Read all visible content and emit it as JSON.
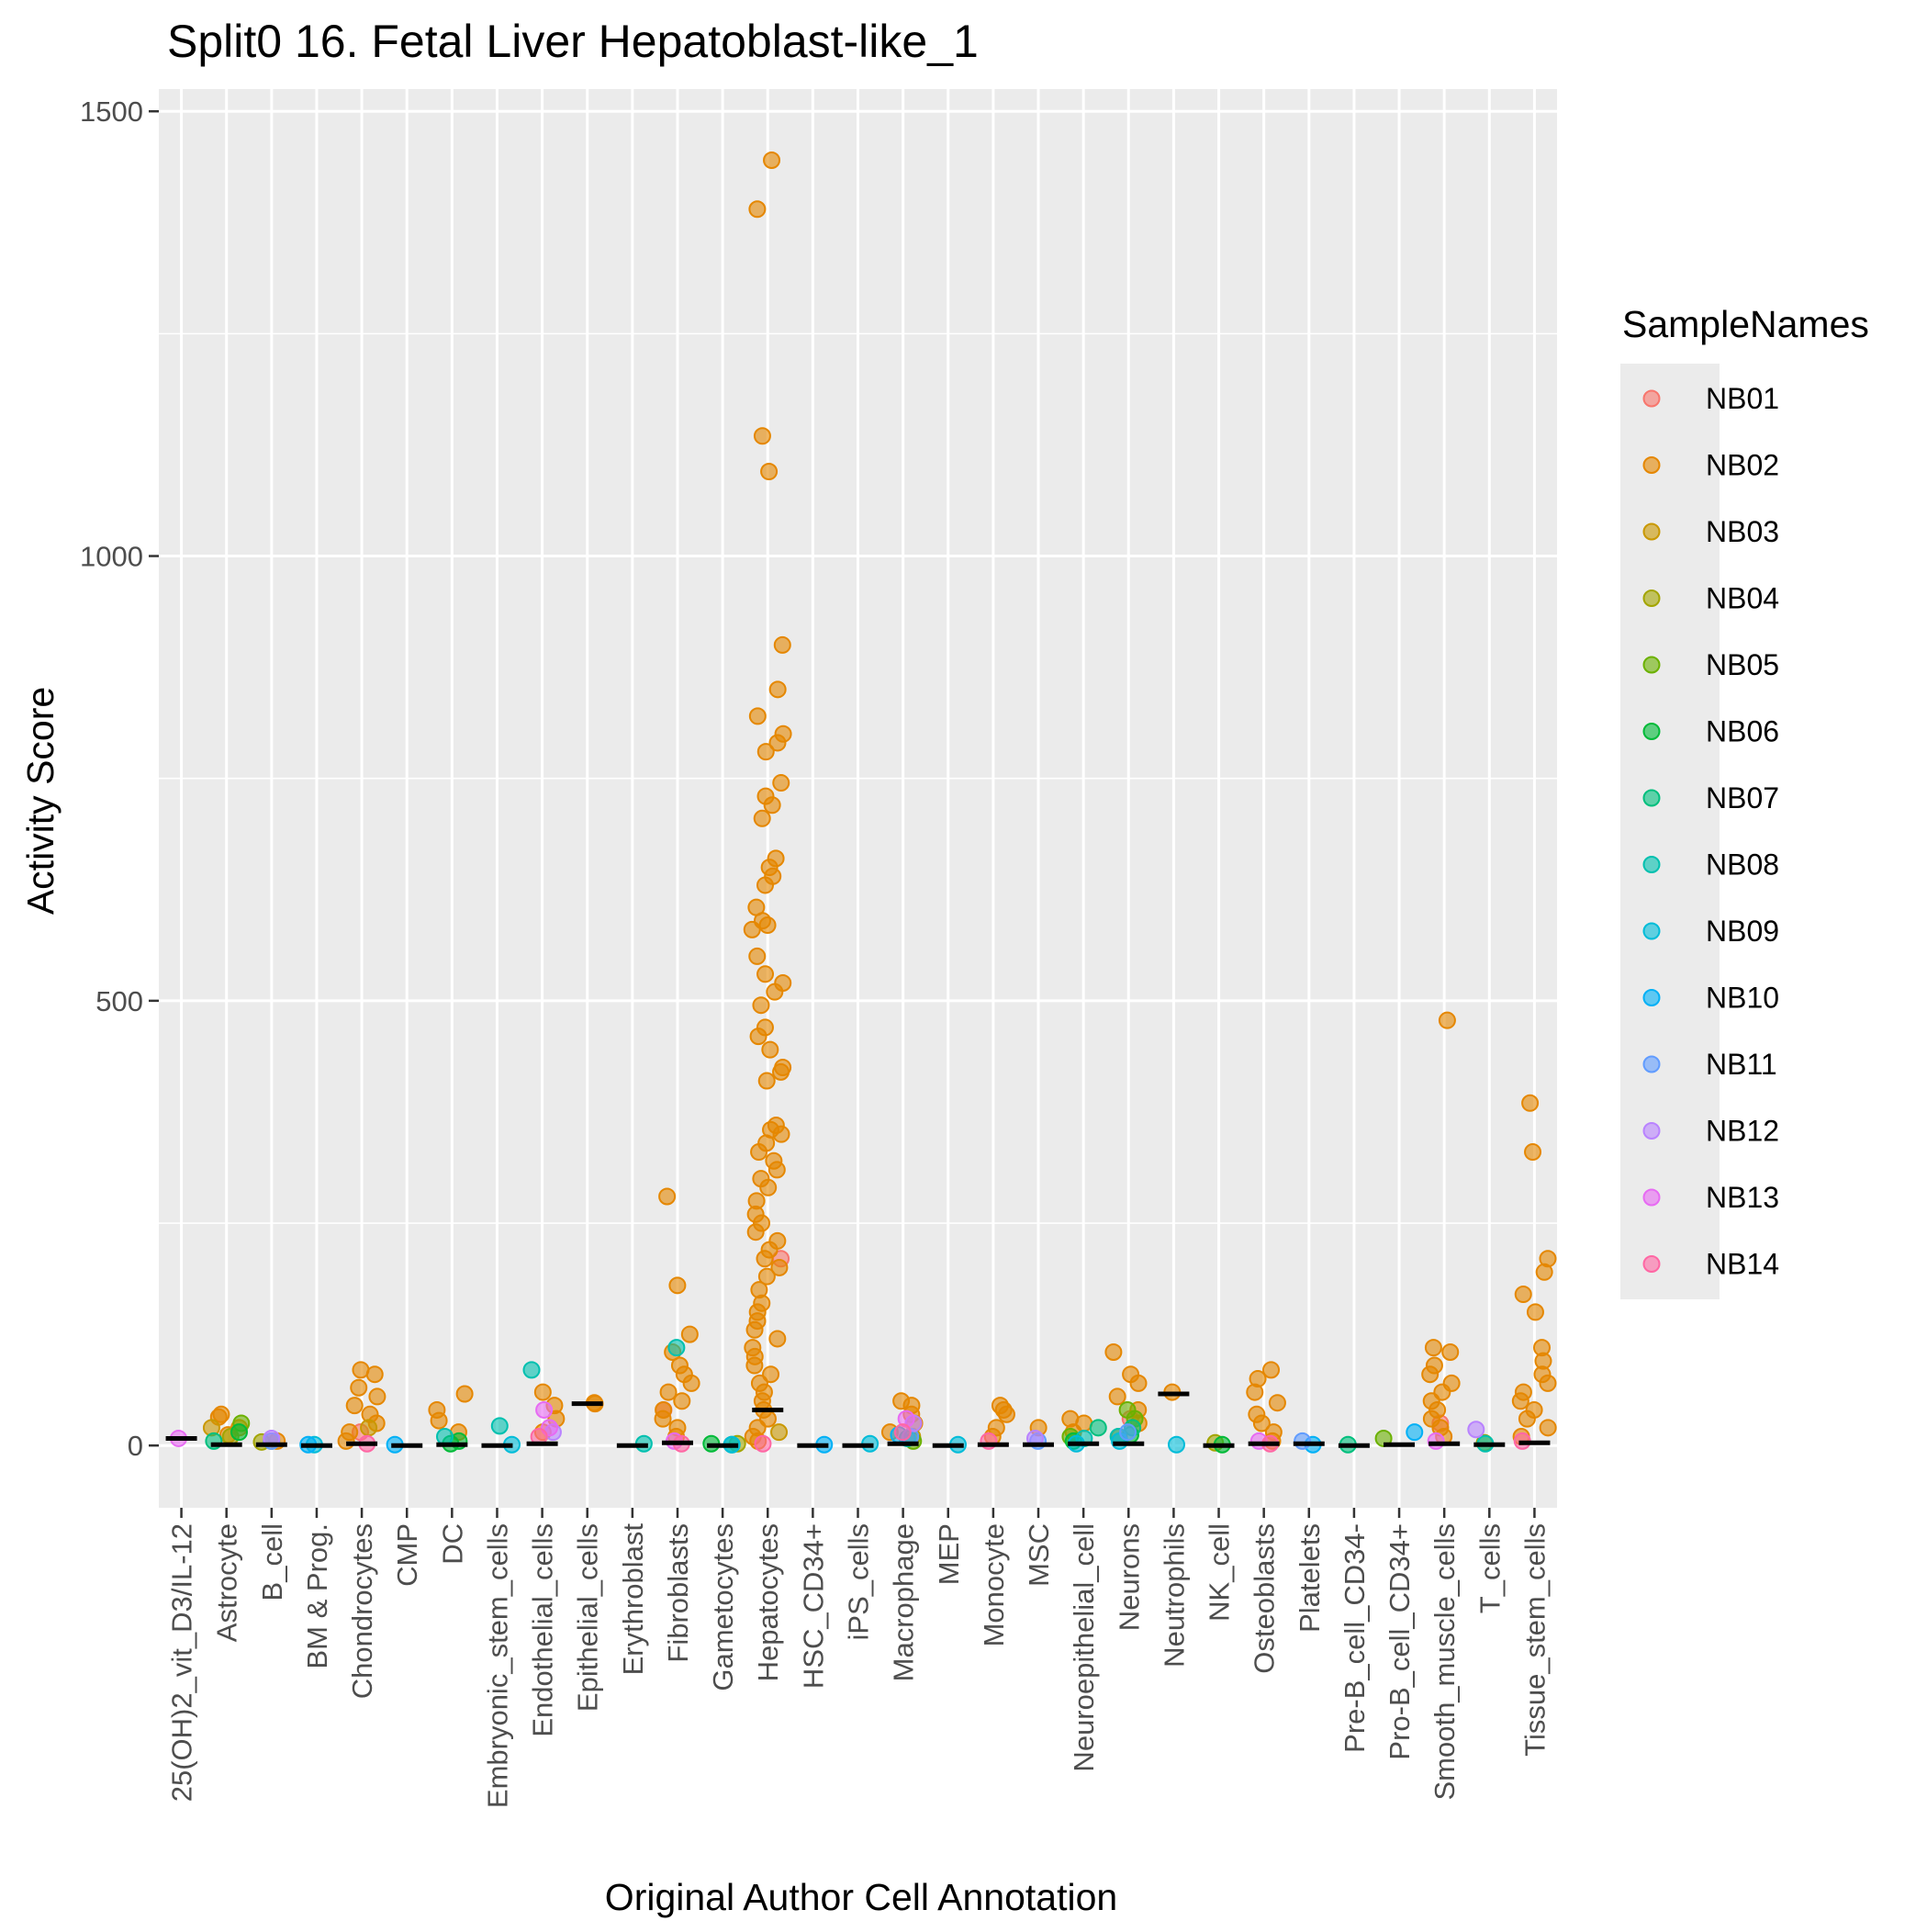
{
  "chart_data": {
    "type": "scatter",
    "title": "Split0 16. Fetal Liver Hepatoblast-like_1",
    "xlabel": "Original Author Cell Annotation",
    "ylabel": "Activity Score",
    "ylim": [
      -70,
      1525
    ],
    "y_ticks": [
      0,
      500,
      1000,
      1500
    ],
    "grid": true,
    "legend": {
      "title": "SampleNames",
      "position": "right",
      "entries": [
        "NB01",
        "NB02",
        "NB03",
        "NB04",
        "NB05",
        "NB06",
        "NB07",
        "NB08",
        "NB09",
        "NB10",
        "NB11",
        "NB12",
        "NB13",
        "NB14"
      ]
    },
    "colors": {
      "NB01": "#F8766D",
      "NB02": "#E58700",
      "NB03": "#C99800",
      "NB04": "#A3A500",
      "NB05": "#6BB100",
      "NB06": "#00BA38",
      "NB07": "#00BF7D",
      "NB08": "#00C0AF",
      "NB09": "#00BCD8",
      "NB10": "#00B0F6",
      "NB11": "#619CFF",
      "NB12": "#B983FF",
      "NB13": "#E76BF3",
      "NB14": "#FF67A4",
      "panel": "#EBEBEB",
      "grid": "#FFFFFF",
      "median": "#000000"
    },
    "categories": [
      "25(OH)2_vit_D3/IL-12",
      "Astrocyte",
      "B_cell",
      "BM & Prog.",
      "Chondrocytes",
      "CMP",
      "DC",
      "Embryonic_stem_cells",
      "Endothelial_cells",
      "Epithelial_cells",
      "Erythroblast",
      "Fibroblasts",
      "Gametocytes",
      "Hepatocytes",
      "HSC_CD34+",
      "iPS_cells",
      "Macrophage",
      "MEP",
      "Monocyte",
      "MSC",
      "Neuroepithelial_cell",
      "Neurons",
      "Neutrophils",
      "NK_cell",
      "Osteoblasts",
      "Platelets",
      "Pre-B_cell_CD34-",
      "Pro-B_cell_CD34+",
      "Smooth_muscle_cells",
      "T_cells",
      "Tissue_stem_cells"
    ],
    "medians": [
      8,
      1,
      1,
      0,
      2,
      0,
      1,
      0,
      2,
      47,
      0,
      3,
      0,
      40,
      0,
      0,
      2,
      0,
      1,
      1,
      2,
      2,
      58,
      0,
      2,
      2,
      0,
      1,
      2,
      1,
      3
    ],
    "series": [
      {
        "name": "NB01",
        "points": [
          [
            13,
            210
          ],
          [
            11,
            40
          ],
          [
            21,
            30
          ],
          [
            28,
            25
          ],
          [
            4,
            15
          ]
        ]
      },
      {
        "name": "NB02",
        "points": [
          [
            13,
            1445
          ],
          [
            13,
            1390
          ],
          [
            13,
            1135
          ],
          [
            13,
            1095
          ],
          [
            13,
            900
          ],
          [
            13,
            850
          ],
          [
            13,
            820
          ],
          [
            13,
            800
          ],
          [
            13,
            790
          ],
          [
            13,
            780
          ],
          [
            13,
            745
          ],
          [
            13,
            730
          ],
          [
            13,
            720
          ],
          [
            13,
            705
          ],
          [
            13,
            660
          ],
          [
            13,
            650
          ],
          [
            13,
            640
          ],
          [
            13,
            630
          ],
          [
            13,
            605
          ],
          [
            13,
            590
          ],
          [
            13,
            585
          ],
          [
            13,
            580
          ],
          [
            13,
            550
          ],
          [
            13,
            530
          ],
          [
            13,
            520
          ],
          [
            13,
            510
          ],
          [
            13,
            495
          ],
          [
            13,
            470
          ],
          [
            13,
            460
          ],
          [
            13,
            445
          ],
          [
            13,
            425
          ],
          [
            13,
            420
          ],
          [
            13,
            410
          ],
          [
            13,
            360
          ],
          [
            13,
            355
          ],
          [
            13,
            350
          ],
          [
            13,
            340
          ],
          [
            13,
            330
          ],
          [
            13,
            320
          ],
          [
            13,
            310
          ],
          [
            13,
            300
          ],
          [
            13,
            290
          ],
          [
            13,
            275
          ],
          [
            13,
            260
          ],
          [
            13,
            250
          ],
          [
            13,
            240
          ],
          [
            13,
            230
          ],
          [
            13,
            220
          ],
          [
            13,
            210
          ],
          [
            13,
            200
          ],
          [
            13,
            190
          ],
          [
            13,
            175
          ],
          [
            13,
            160
          ],
          [
            13,
            150
          ],
          [
            13,
            140
          ],
          [
            13,
            130
          ],
          [
            13,
            120
          ],
          [
            13,
            110
          ],
          [
            13,
            100
          ],
          [
            13,
            90
          ],
          [
            13,
            80
          ],
          [
            13,
            70
          ],
          [
            13,
            60
          ],
          [
            13,
            50
          ],
          [
            13,
            40
          ],
          [
            13,
            30
          ],
          [
            13,
            20
          ],
          [
            13,
            10
          ],
          [
            13,
            5
          ],
          [
            28,
            478
          ],
          [
            28,
            110
          ],
          [
            28,
            105
          ],
          [
            28,
            90
          ],
          [
            28,
            80
          ],
          [
            28,
            70
          ],
          [
            28,
            60
          ],
          [
            28,
            50
          ],
          [
            28,
            40
          ],
          [
            28,
            30
          ],
          [
            28,
            20
          ],
          [
            28,
            10
          ],
          [
            30,
            385
          ],
          [
            30,
            330
          ],
          [
            30,
            210
          ],
          [
            30,
            195
          ],
          [
            30,
            170
          ],
          [
            30,
            150
          ],
          [
            30,
            110
          ],
          [
            30,
            95
          ],
          [
            30,
            80
          ],
          [
            30,
            70
          ],
          [
            30,
            60
          ],
          [
            30,
            50
          ],
          [
            30,
            40
          ],
          [
            30,
            30
          ],
          [
            30,
            20
          ],
          [
            30,
            10
          ],
          [
            11,
            280
          ],
          [
            11,
            180
          ],
          [
            11,
            125
          ],
          [
            11,
            105
          ],
          [
            11,
            90
          ],
          [
            11,
            80
          ],
          [
            11,
            70
          ],
          [
            11,
            60
          ],
          [
            11,
            50
          ],
          [
            11,
            40
          ],
          [
            11,
            30
          ],
          [
            11,
            20
          ],
          [
            11,
            10
          ],
          [
            4,
            85
          ],
          [
            4,
            80
          ],
          [
            4,
            65
          ],
          [
            4,
            55
          ],
          [
            4,
            45
          ],
          [
            4,
            35
          ],
          [
            4,
            25
          ],
          [
            4,
            15
          ],
          [
            4,
            5
          ],
          [
            24,
            85
          ],
          [
            24,
            75
          ],
          [
            24,
            60
          ],
          [
            24,
            48
          ],
          [
            24,
            35
          ],
          [
            24,
            25
          ],
          [
            24,
            15
          ],
          [
            24,
            5
          ],
          [
            21,
            105
          ],
          [
            21,
            80
          ],
          [
            21,
            70
          ],
          [
            21,
            55
          ],
          [
            21,
            40
          ],
          [
            21,
            25
          ],
          [
            21,
            10
          ],
          [
            16,
            50
          ],
          [
            16,
            45
          ],
          [
            16,
            35
          ],
          [
            16,
            25
          ],
          [
            16,
            15
          ],
          [
            18,
            45
          ],
          [
            18,
            40
          ],
          [
            18,
            35
          ],
          [
            18,
            20
          ],
          [
            18,
            10
          ],
          [
            6,
            58
          ],
          [
            6,
            40
          ],
          [
            6,
            28
          ],
          [
            6,
            15
          ],
          [
            8,
            60
          ],
          [
            8,
            45
          ],
          [
            8,
            30
          ],
          [
            8,
            15
          ],
          [
            1,
            32
          ],
          [
            1,
            35
          ],
          [
            1,
            20
          ],
          [
            1,
            12
          ],
          [
            20,
            30
          ],
          [
            20,
            25
          ],
          [
            20,
            15
          ],
          [
            22,
            60
          ],
          [
            9,
            48
          ],
          [
            9,
            47
          ],
          [
            19,
            20
          ],
          [
            2,
            5
          ]
        ]
      },
      {
        "name": "NB03",
        "points": [
          [
            1,
            20
          ],
          [
            4,
            20
          ],
          [
            13,
            15
          ],
          [
            16,
            10
          ],
          [
            2,
            5
          ]
        ]
      },
      {
        "name": "NB04",
        "points": [
          [
            1,
            10
          ],
          [
            2,
            4
          ],
          [
            23,
            3
          ],
          [
            12,
            2
          ],
          [
            29,
            3
          ]
        ]
      },
      {
        "name": "NB05",
        "points": [
          [
            1,
            25
          ],
          [
            21,
            40
          ],
          [
            21,
            30
          ],
          [
            16,
            5
          ],
          [
            27,
            8
          ],
          [
            20,
            10
          ]
        ]
      },
      {
        "name": "NB06",
        "points": [
          [
            1,
            15
          ],
          [
            6,
            5
          ],
          [
            6,
            2
          ],
          [
            12,
            2
          ],
          [
            23,
            1
          ],
          [
            20,
            5
          ],
          [
            21,
            12
          ]
        ]
      },
      {
        "name": "NB07",
        "points": [
          [
            1,
            5
          ],
          [
            20,
            20
          ],
          [
            21,
            20
          ],
          [
            26,
            1
          ],
          [
            12,
            1
          ]
        ]
      },
      {
        "name": "NB08",
        "points": [
          [
            8,
            85
          ],
          [
            11,
            110
          ],
          [
            7,
            22
          ],
          [
            21,
            10
          ],
          [
            20,
            8
          ],
          [
            29,
            2
          ],
          [
            10,
            2
          ],
          [
            16,
            8
          ],
          [
            6,
            10
          ]
        ]
      },
      {
        "name": "NB09",
        "points": [
          [
            15,
            2
          ],
          [
            7,
            1
          ],
          [
            3,
            1
          ],
          [
            20,
            2
          ],
          [
            21,
            5
          ],
          [
            17,
            1
          ],
          [
            12,
            1
          ],
          [
            22,
            1
          ]
        ]
      },
      {
        "name": "NB10",
        "points": [
          [
            3,
            1
          ],
          [
            27,
            15
          ],
          [
            5,
            1
          ],
          [
            14,
            1
          ],
          [
            16,
            12
          ],
          [
            25,
            1
          ]
        ]
      },
      {
        "name": "NB11",
        "points": [
          [
            19,
            5
          ],
          [
            25,
            5
          ],
          [
            16,
            10
          ],
          [
            21,
            15
          ],
          [
            2,
            5
          ]
        ]
      },
      {
        "name": "NB12",
        "points": [
          [
            29,
            18
          ],
          [
            2,
            8
          ],
          [
            16,
            25
          ],
          [
            19,
            8
          ],
          [
            8,
            15
          ]
        ]
      },
      {
        "name": "NB13",
        "points": [
          [
            8,
            40
          ],
          [
            8,
            20
          ],
          [
            11,
            5
          ],
          [
            24,
            5
          ],
          [
            16,
            30
          ],
          [
            28,
            5
          ],
          [
            0,
            8
          ]
        ]
      },
      {
        "name": "NB14",
        "points": [
          [
            11,
            2
          ],
          [
            8,
            10
          ],
          [
            4,
            2
          ],
          [
            24,
            2
          ],
          [
            16,
            15
          ],
          [
            30,
            5
          ],
          [
            18,
            5
          ],
          [
            13,
            2
          ]
        ]
      }
    ]
  }
}
